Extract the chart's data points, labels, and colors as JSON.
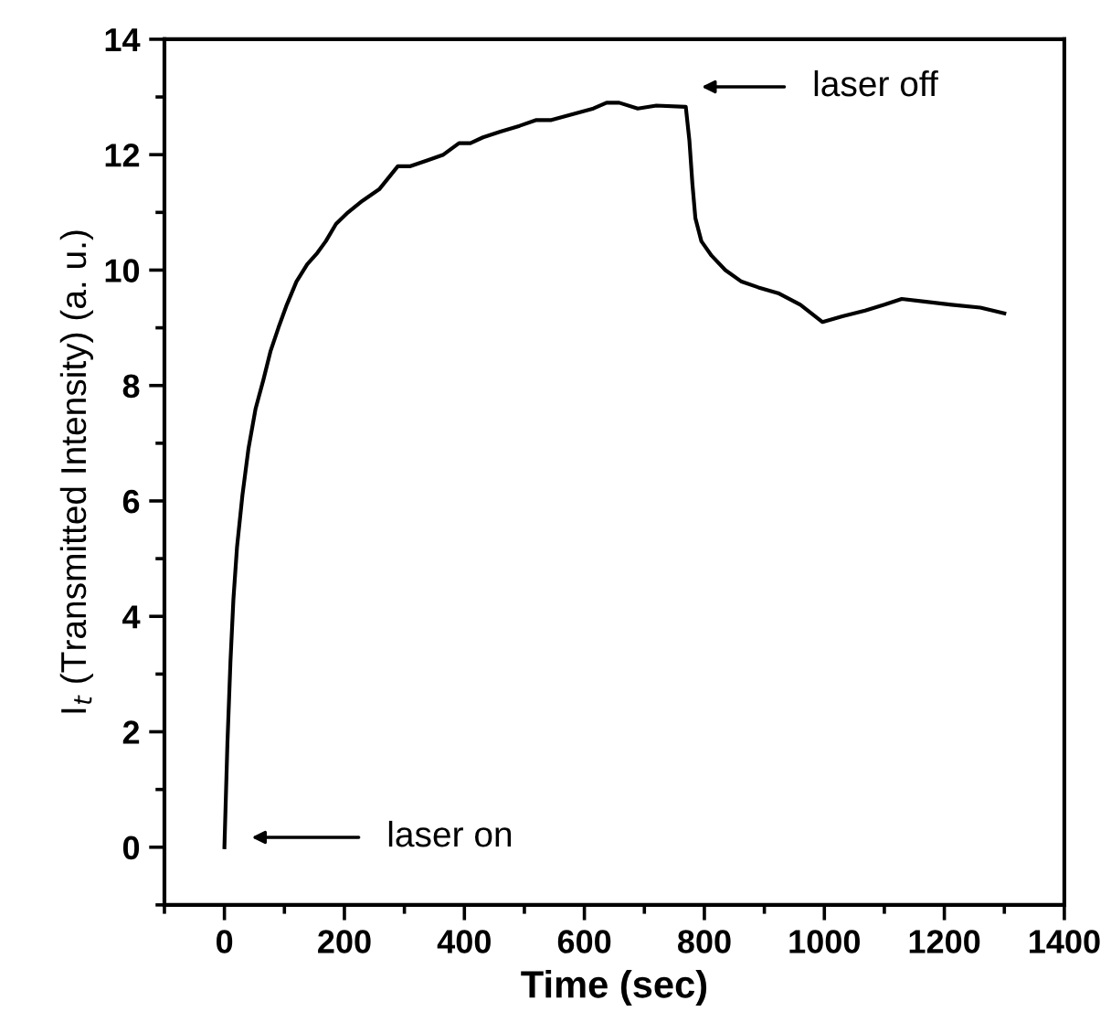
{
  "chart_data": {
    "type": "line",
    "xlabel": "Time (sec)",
    "ylabel": "I$_{t}$ (Transmitted Intensity) (a. u.)",
    "xlim": [
      -100,
      1400
    ],
    "ylim": [
      -1,
      14
    ],
    "xticks": [
      {
        "value": -100,
        "label": null
      },
      0,
      {
        "value": 100,
        "label": null
      },
      200,
      {
        "value": 300,
        "label": null
      },
      400,
      {
        "value": 500,
        "label": null
      },
      600,
      {
        "value": 700,
        "label": null
      },
      800,
      {
        "value": 900,
        "label": null
      },
      1000,
      {
        "value": 1100,
        "label": null
      },
      1200,
      {
        "value": 1300,
        "label": null
      },
      1400
    ],
    "yticks": [
      {
        "value": -1,
        "label": null
      },
      0,
      {
        "value": 1,
        "label": null
      },
      2,
      {
        "value": 3,
        "label": null
      },
      4,
      {
        "value": 5,
        "label": null
      },
      6,
      {
        "value": 7,
        "label": null
      },
      8,
      {
        "value": 9,
        "label": null
      },
      10,
      {
        "value": 11,
        "label": null
      },
      12,
      {
        "value": 13,
        "label": null
      },
      14
    ],
    "grid": false,
    "legend": false,
    "marker": "none",
    "line_style": "solid",
    "series": [
      {
        "color": "#000000",
        "x": [
          0,
          5,
          10,
          15,
          21,
          30,
          40,
          52,
          65,
          77,
          90,
          104,
          120,
          138,
          155,
          169,
          186,
          206,
          230,
          258,
          289,
          310,
          338,
          365,
          391,
          410,
          431,
          460,
          492,
          520,
          545,
          580,
          615,
          637,
          658,
          689,
          720,
          769,
          775,
          780,
          785,
          795,
          812,
          835,
          862,
          890,
          923,
          960,
          997,
          1030,
          1068,
          1100,
          1129,
          1170,
          1212,
          1260,
          1300
        ],
        "values": [
          0,
          1.8,
          3.2,
          4.3,
          5.2,
          6.1,
          6.9,
          7.6,
          8.1,
          8.6,
          9.0,
          9.4,
          9.8,
          10.1,
          10.3,
          10.5,
          10.8,
          11.0,
          11.2,
          11.4,
          11.8,
          11.8,
          11.9,
          12.0,
          12.2,
          12.2,
          12.3,
          12.4,
          12.5,
          12.6,
          12.6,
          12.7,
          12.8,
          12.9,
          12.9,
          12.8,
          12.85,
          12.83,
          12.25,
          11.5,
          10.9,
          10.5,
          10.25,
          10.0,
          9.8,
          9.7,
          9.6,
          9.4,
          9.1,
          9.2,
          9.3,
          9.4,
          9.5,
          9.45,
          9.4,
          9.35,
          9.25
        ]
      }
    ],
    "annotations": [
      "laser on",
      "laser off"
    ]
  }
}
